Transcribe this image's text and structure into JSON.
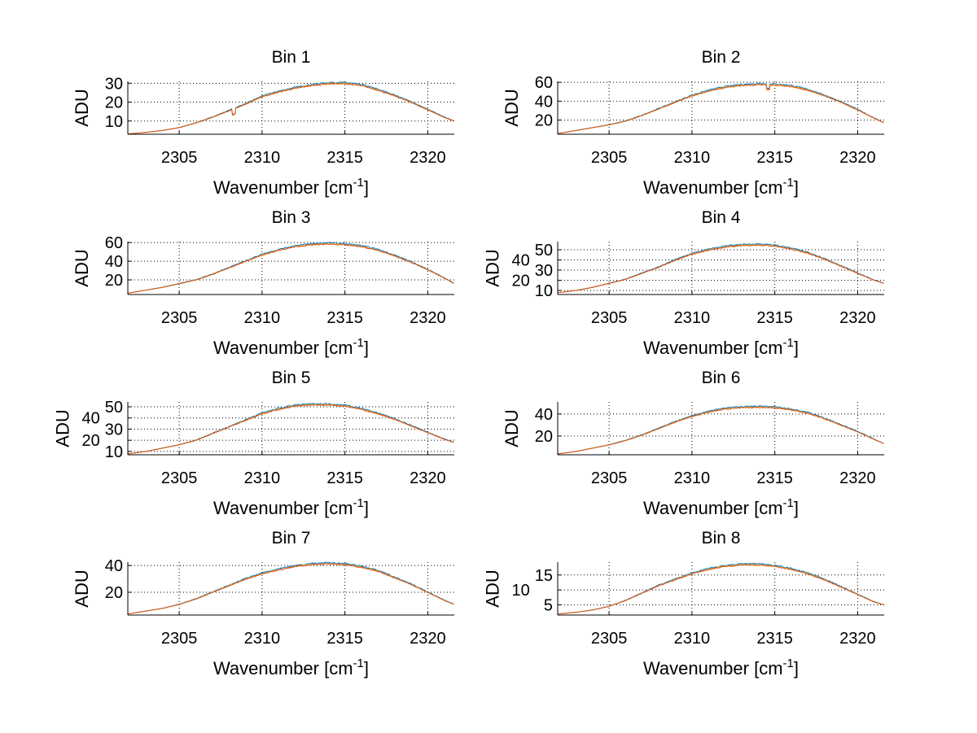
{
  "chart_data": {
    "type": "line",
    "layout": "4x2 subplots",
    "x": [
      2302,
      2303,
      2304,
      2305,
      2306,
      2307,
      2308,
      2309,
      2310,
      2311,
      2312,
      2313,
      2314,
      2315,
      2316,
      2317,
      2318,
      2319,
      2320,
      2321,
      2321.6
    ],
    "xlim": [
      2301.9,
      2321.6
    ],
    "xticks": [
      2305,
      2310,
      2315,
      2320
    ],
    "xlabel": "Wavenumber [cm",
    "xlabel_sup": "-1",
    "xlabel_end": "]",
    "ylabel": "ADU",
    "grid": true,
    "series_colors": [
      "#0072bd",
      "#edb120",
      "#d95319"
    ],
    "subplots": [
      {
        "title": "Bin 1",
        "ylim": [
          3,
          31
        ],
        "yticks": [
          10,
          20,
          30
        ],
        "values": [
          3.2,
          4,
          5,
          6.5,
          9,
          12,
          15.5,
          19,
          23,
          25.5,
          27.5,
          29,
          30,
          30,
          29,
          26.5,
          23.5,
          20,
          16,
          12,
          10
        ]
      },
      {
        "title": "Bin 2",
        "ylim": [
          5,
          61
        ],
        "yticks": [
          20,
          40,
          60
        ],
        "values": [
          6,
          9,
          12,
          15,
          19,
          25,
          32,
          39,
          46,
          51,
          55,
          57,
          58,
          57.5,
          56,
          52,
          46,
          39,
          31,
          22,
          17
        ]
      },
      {
        "title": "Bin 3",
        "ylim": [
          4.3,
          61
        ],
        "yticks": [
          20,
          40,
          60
        ],
        "values": [
          6,
          9,
          12,
          16,
          20,
          26,
          33,
          40,
          47,
          52,
          56,
          58,
          59,
          58,
          56,
          52,
          46,
          39,
          31,
          22,
          16
        ]
      },
      {
        "title": "Bin 4",
        "ylim": [
          6,
          58
        ],
        "yticks": [
          10,
          20,
          30,
          40,
          50
        ],
        "values": [
          8,
          10,
          13,
          17,
          21,
          27,
          33,
          40,
          46,
          50,
          53,
          54.5,
          55,
          54,
          51,
          47,
          41,
          34,
          27,
          20,
          17
        ]
      },
      {
        "title": "Bin 5",
        "ylim": [
          7,
          54.4
        ],
        "yticks": [
          10,
          20,
          30,
          40,
          50
        ],
        "values": [
          8,
          10,
          13,
          16,
          20,
          26,
          32,
          38,
          44,
          48,
          51,
          52,
          52,
          51,
          48,
          44,
          39,
          33,
          27,
          21,
          18
        ]
      },
      {
        "title": "Bin 6",
        "ylim": [
          3,
          51
        ],
        "yticks": [
          20,
          40
        ],
        "values": [
          4,
          6,
          9,
          12,
          16,
          21,
          27,
          33,
          38,
          42,
          45,
          46,
          46.5,
          46,
          44,
          41,
          36,
          30,
          24,
          17,
          13
        ]
      },
      {
        "title": "Bin 7",
        "ylim": [
          3,
          42.5
        ],
        "yticks": [
          20,
          40
        ],
        "values": [
          4,
          6,
          8,
          11,
          15,
          20,
          25,
          30,
          34,
          37,
          39.5,
          41,
          41.5,
          41,
          39,
          36,
          31,
          26,
          20,
          14,
          11
        ]
      },
      {
        "title": "Bin 8",
        "ylim": [
          1.6,
          19.3
        ],
        "yticks": [
          5,
          10,
          15
        ],
        "values": [
          2,
          2.5,
          3.3,
          4.5,
          6.5,
          9,
          11.5,
          13.5,
          15.5,
          17,
          18,
          18.5,
          18.5,
          18,
          17,
          15.5,
          13.5,
          11,
          8.5,
          6,
          5
        ]
      }
    ]
  }
}
